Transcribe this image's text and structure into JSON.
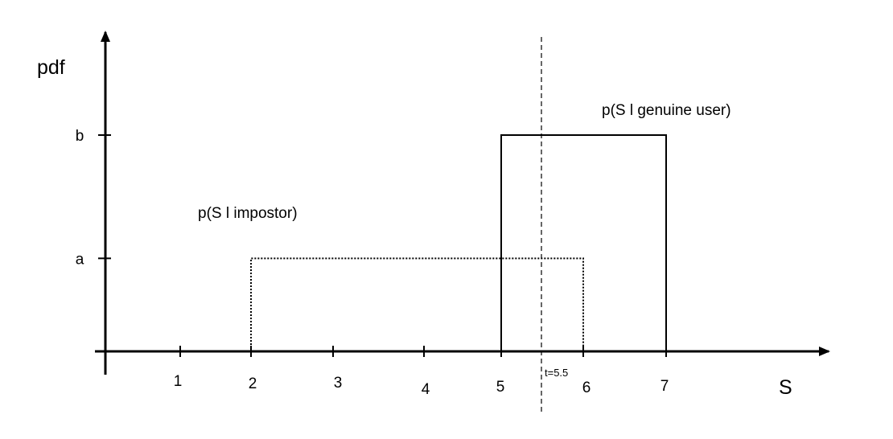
{
  "chart_data": {
    "type": "line",
    "x_axis_label": "S",
    "y_axis_label": "pdf",
    "x_ticks": [
      1,
      2,
      3,
      4,
      5,
      6,
      7
    ],
    "y_ticks": [
      {
        "label": "a",
        "level": 0.43
      },
      {
        "label": "b",
        "level": 1.0
      }
    ],
    "threshold": {
      "value": 5.5,
      "label": "t=5.5",
      "style": "dashed"
    },
    "series": [
      {
        "name": "p(S l impostor)",
        "style": "dotted",
        "x": [
          2,
          2,
          6,
          6
        ],
        "y": [
          0,
          0.43,
          0.43,
          0
        ],
        "height_label": "a"
      },
      {
        "name": "p(S l genuine user)",
        "style": "solid",
        "x": [
          5,
          5,
          7,
          7
        ],
        "y": [
          0,
          1.0,
          1.0,
          0
        ],
        "height_label": "b"
      }
    ]
  }
}
